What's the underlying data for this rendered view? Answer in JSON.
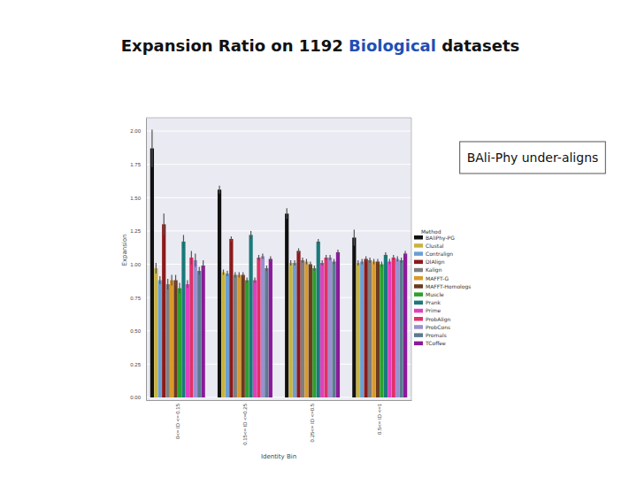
{
  "chart_data": {
    "type": "bar",
    "title": [
      "Expansion Ratio on 1192 ",
      "Biological",
      " datasets"
    ],
    "annotations": [
      "BAli-Phy under-aligns"
    ],
    "x_label": "Identity Bin",
    "y_label": "Expansion",
    "legend_title": "Method",
    "legend": "right",
    "grid": true,
    "categories": [
      "0<= ID <= 0.15",
      "0.15<= ID <=0.25",
      "0.25<= ID <=0.5",
      "0.5<= ID <=1"
    ],
    "ylim": [
      -0.02,
      2.1
    ],
    "yticks": [
      {
        "value": 0,
        "label": "0.00"
      },
      {
        "value": 0.25,
        "label": "0.25"
      },
      {
        "value": 0.5,
        "label": "0.50"
      },
      {
        "value": 0.75,
        "label": "0.75"
      },
      {
        "value": 1,
        "label": "1.00"
      },
      {
        "value": 1.25,
        "label": "1.25"
      },
      {
        "value": 1.5,
        "label": "1.50"
      },
      {
        "value": 1.75,
        "label": "1.75"
      },
      {
        "value": 2,
        "label": "2.00"
      }
    ],
    "series": [
      {
        "name": "BAliPhy-PG",
        "color": "#111111",
        "values": [
          1.87,
          1.56,
          1.38,
          1.2
        ],
        "errors": [
          0.14,
          0.03,
          0.04,
          0.06
        ]
      },
      {
        "name": "Clustal",
        "color": "#c8b43c",
        "values": [
          0.97,
          0.94,
          1.01,
          1.01
        ],
        "errors": [
          0.04,
          0.02,
          0.02,
          0.02
        ]
      },
      {
        "name": "Contralign",
        "color": "#6a9fd4",
        "values": [
          0.88,
          0.93,
          1.01,
          1.02
        ],
        "errors": [
          0.03,
          0.02,
          0.02,
          0.02
        ]
      },
      {
        "name": "DIAlign",
        "color": "#8b1a1a",
        "values": [
          1.3,
          1.19,
          1.1,
          1.04
        ],
        "errors": [
          0.08,
          0.02,
          0.02,
          0.02
        ]
      },
      {
        "name": "Kalign",
        "color": "#7f7f7f",
        "values": [
          0.85,
          0.92,
          1.03,
          1.03
        ],
        "errors": [
          0.04,
          0.02,
          0.02,
          0.02
        ]
      },
      {
        "name": "MAFFT-G",
        "color": "#d99a2b",
        "values": [
          0.88,
          0.92,
          1.02,
          1.02
        ],
        "errors": [
          0.04,
          0.02,
          0.02,
          0.02
        ]
      },
      {
        "name": "MAFFT-Homologs",
        "color": "#6b3a1f",
        "values": [
          0.88,
          0.92,
          1.0,
          1.02
        ],
        "errors": [
          0.04,
          0.02,
          0.02,
          0.02
        ]
      },
      {
        "name": "Muscle",
        "color": "#2ca02c",
        "values": [
          0.82,
          0.88,
          0.97,
          1.0
        ],
        "errors": [
          0.04,
          0.02,
          0.02,
          0.02
        ]
      },
      {
        "name": "Prank",
        "color": "#1a7a7a",
        "values": [
          1.17,
          1.22,
          1.17,
          1.07
        ],
        "errors": [
          0.05,
          0.03,
          0.02,
          0.02
        ]
      },
      {
        "name": "Prime",
        "color": "#e040c0",
        "values": [
          0.85,
          0.88,
          1.01,
          1.02
        ],
        "errors": [
          0.03,
          0.02,
          0.02,
          0.02
        ]
      },
      {
        "name": "ProbAlign",
        "color": "#e0306a",
        "values": [
          1.05,
          1.05,
          1.05,
          1.05
        ],
        "errors": [
          0.05,
          0.02,
          0.02,
          0.02
        ]
      },
      {
        "name": "ProbCons",
        "color": "#9a8fd0",
        "values": [
          1.03,
          1.06,
          1.05,
          1.04
        ],
        "errors": [
          0.05,
          0.02,
          0.02,
          0.02
        ]
      },
      {
        "name": "Promals",
        "color": "#5a7a90",
        "values": [
          0.95,
          0.97,
          1.02,
          1.03
        ],
        "errors": [
          0.03,
          0.02,
          0.02,
          0.02
        ]
      },
      {
        "name": "TCoffee",
        "color": "#8a1a9a",
        "values": [
          0.99,
          1.04,
          1.09,
          1.08
        ],
        "errors": [
          0.04,
          0.02,
          0.02,
          0.02
        ]
      }
    ]
  }
}
